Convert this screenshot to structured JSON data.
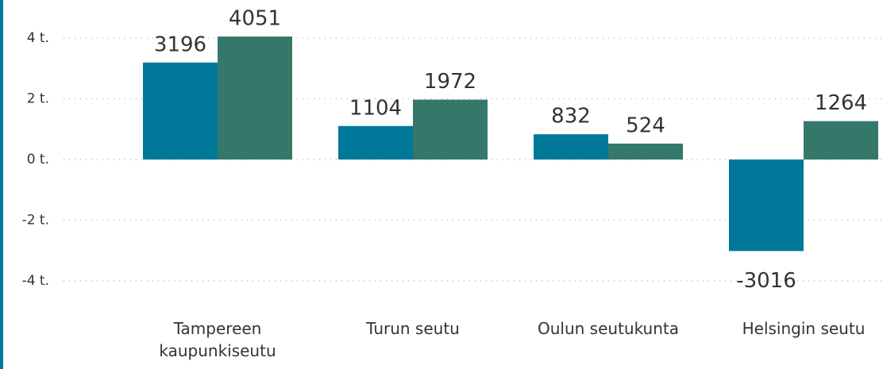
{
  "chart_data": {
    "type": "bar",
    "categories": [
      "Tampereen kaupunkiseutu",
      "Turun seutu",
      "Oulun seutukunta",
      "Helsingin seutu"
    ],
    "series": [
      {
        "color": "#00789a",
        "values": [
          3196,
          1104,
          832,
          -3016
        ]
      },
      {
        "color": "#34786a",
        "values": [
          4051,
          1972,
          524,
          1264
        ]
      }
    ],
    "ylim": [
      -5000,
      5000
    ],
    "yticks": [
      {
        "value": -4000,
        "label": "-4 t."
      },
      {
        "value": -2000,
        "label": "-2 t."
      },
      {
        "value": 0,
        "label": "0 t."
      },
      {
        "value": 2000,
        "label": "2 t."
      },
      {
        "value": 4000,
        "label": "4 t."
      }
    ],
    "grid": true
  }
}
